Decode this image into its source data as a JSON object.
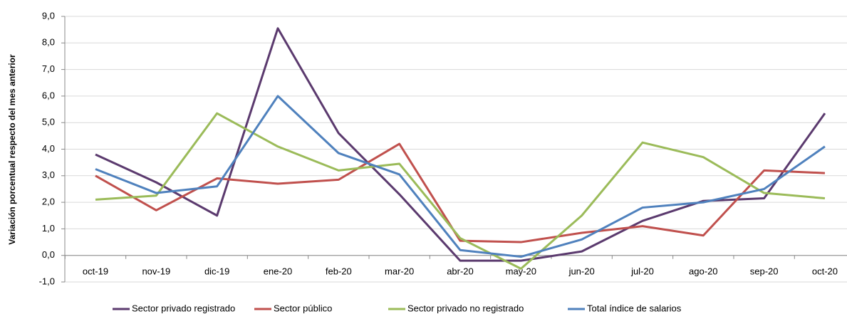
{
  "chart_data": {
    "type": "line",
    "y_label": "Variación porcentual respecto del mes anterior",
    "categories": [
      "oct-19",
      "nov-19",
      "dic-19",
      "ene-20",
      "feb-20",
      "mar-20",
      "abr-20",
      "may-20",
      "jun-20",
      "jul-20",
      "ago-20",
      "sep-20",
      "oct-20"
    ],
    "series": [
      {
        "name": "Sector privado registrado",
        "color": "#5b3a6e",
        "values": [
          3.8,
          2.75,
          1.5,
          8.55,
          4.6,
          2.3,
          -0.2,
          -0.2,
          0.15,
          1.3,
          2.05,
          2.15,
          5.35
        ]
      },
      {
        "name": "Sector público",
        "color": "#c0504d",
        "values": [
          3.0,
          1.7,
          2.9,
          2.7,
          2.85,
          4.2,
          0.55,
          0.5,
          0.85,
          1.1,
          0.75,
          3.2,
          3.1
        ]
      },
      {
        "name": "Sector privado no registrado",
        "color": "#9bbb59",
        "values": [
          2.1,
          2.25,
          5.35,
          4.1,
          3.2,
          3.45,
          0.65,
          -0.5,
          1.5,
          4.25,
          3.7,
          2.35,
          2.15
        ]
      },
      {
        "name": "Total índice de salarios",
        "color": "#4f81bd",
        "values": [
          3.25,
          2.35,
          2.6,
          6.0,
          3.85,
          3.05,
          0.2,
          -0.05,
          0.6,
          1.8,
          2.0,
          2.5,
          4.1
        ]
      }
    ],
    "ylim": [
      -1,
      9
    ],
    "yticks": [
      {
        "value": -1,
        "label": "-1,0"
      },
      {
        "value": 0,
        "label": "0,0"
      },
      {
        "value": 1,
        "label": "1,0"
      },
      {
        "value": 2,
        "label": "2,0"
      },
      {
        "value": 3,
        "label": "3,0"
      },
      {
        "value": 4,
        "label": "4,0"
      },
      {
        "value": 5,
        "label": "5,0"
      },
      {
        "value": 6,
        "label": "6,0"
      },
      {
        "value": 7,
        "label": "7,0"
      },
      {
        "value": 8,
        "label": "8,0"
      },
      {
        "value": 9,
        "label": "9,0"
      }
    ],
    "grid": true,
    "legend": "bottom"
  }
}
